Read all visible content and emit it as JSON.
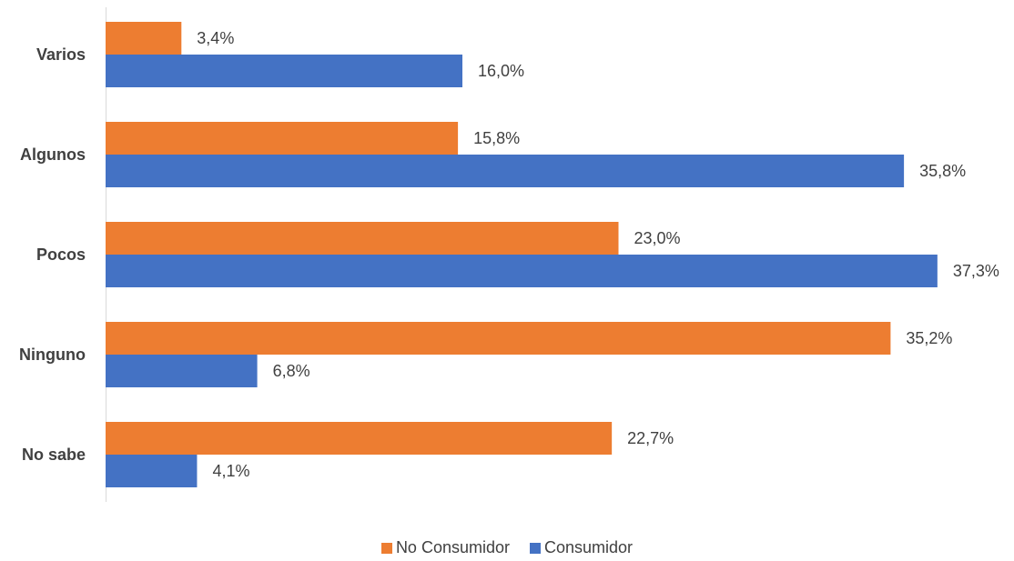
{
  "chart_data": {
    "type": "bar",
    "orientation": "horizontal",
    "categories": [
      "Varios",
      "Algunos",
      "Pocos",
      "Ninguno",
      "No sabe"
    ],
    "series": [
      {
        "name": "No Consumidor",
        "color": "#ED7D31",
        "values": [
          3.4,
          15.8,
          23.0,
          35.2,
          22.7
        ],
        "labels": [
          "3,4%",
          "15,8%",
          "23,0%",
          "35,2%",
          "22,7%"
        ]
      },
      {
        "name": "Consumidor",
        "color": "#4472C4",
        "values": [
          16.0,
          35.8,
          37.3,
          6.8,
          4.1
        ],
        "labels": [
          "16,0%",
          "35,8%",
          "37,3%",
          "6,8%",
          "4,1%"
        ]
      }
    ],
    "xlim": [
      0,
      37.3
    ],
    "grid": false,
    "legend_position": "bottom"
  }
}
